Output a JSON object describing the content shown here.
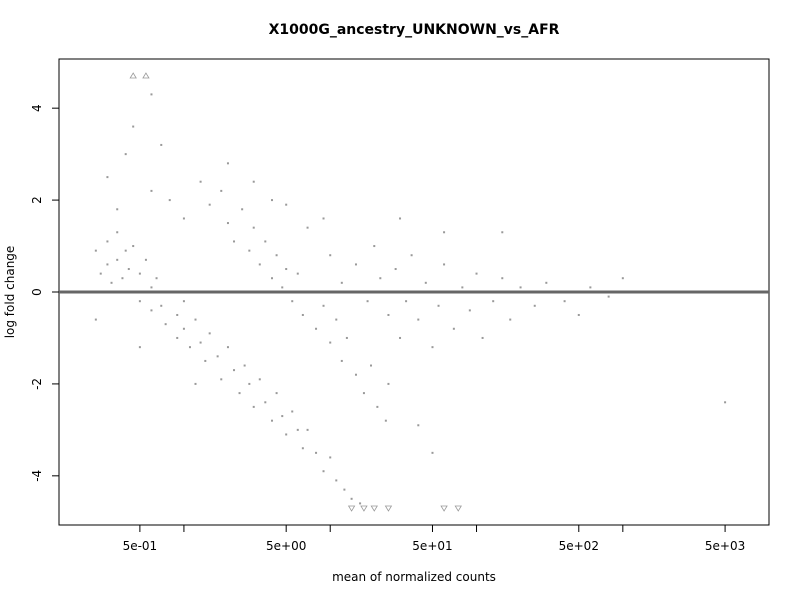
{
  "chart_data": {
    "type": "scatter",
    "title": "X1000G_ancestry_UNKNOWN_vs_AFR",
    "x_label": "mean of normalized counts",
    "y_label": "log fold change",
    "log_x": true,
    "xlim": [
      0.14,
      9980
    ],
    "ylim": [
      -5.07,
      5.07
    ],
    "xticks": [
      {
        "value": 0.5,
        "label": "5e-01"
      },
      {
        "value": 5,
        "label": "5e+00"
      },
      {
        "value": 50,
        "label": "5e+01"
      },
      {
        "value": 500,
        "label": "5e+02"
      },
      {
        "value": 5000,
        "label": "5e+03"
      }
    ],
    "xminor_ticks": [
      1,
      10,
      100,
      1000
    ],
    "yticks": [
      -4,
      -2,
      0,
      2,
      4
    ],
    "reference_line": {
      "y": 0,
      "color": "#666666"
    },
    "series": [
      {
        "color": "#999999",
        "marker": "dot",
        "x": [
          0.25,
          0.27,
          0.3,
          0.3,
          0.32,
          0.35,
          0.35,
          0.38,
          0.4,
          0.42,
          0.45,
          0.45,
          0.5,
          0.5,
          0.55,
          0.6,
          0.6,
          0.65,
          0.7,
          0.75,
          0.8,
          0.9,
          0.9,
          1.0,
          1.0,
          1.1,
          1.2,
          1.3,
          1.4,
          1.5,
          1.7,
          1.8,
          2.0,
          2.2,
          2.4,
          2.6,
          2.8,
          3.0,
          3.3,
          3.6,
          4.0,
          4.3,
          4.7,
          5.0,
          5.5,
          6.0,
          6.5,
          7.0,
          8.0,
          9.0,
          10,
          11,
          12.5,
          14,
          16,
          0.3,
          0.4,
          0.45,
          0.6,
          0.7,
          0.8,
          1.0,
          0.35,
          0.25,
          0.5,
          1.2,
          0.6,
          1.3,
          1.5,
          1.8,
          2.0,
          2.2,
          2.5,
          2.8,
          3.0,
          3.3,
          3.6,
          4.0,
          4.3,
          4.7,
          5.0,
          5.5,
          6.0,
          6.5,
          7.0,
          8.0,
          9.0,
          10,
          11,
          12,
          13,
          15,
          17,
          19,
          21,
          24,
          3.0,
          5.0,
          7.0,
          9.0,
          2.0,
          4.0,
          10,
          12,
          15,
          18,
          20,
          22,
          25,
          28,
          30,
          33,
          36,
          40,
          45,
          50,
          55,
          60,
          70,
          80,
          90,
          100,
          110,
          130,
          150,
          170,
          200,
          250,
          300,
          400,
          500,
          600,
          800,
          1000,
          30,
          60,
          150,
          25,
          40,
          50,
          5000
        ],
        "values": [
          0.9,
          0.4,
          1.1,
          0.6,
          0.2,
          1.3,
          0.7,
          0.3,
          0.9,
          0.5,
          0.0,
          1.0,
          0.4,
          -0.2,
          0.7,
          0.1,
          -0.4,
          0.3,
          -0.3,
          -0.7,
          0.0,
          -0.5,
          -1.0,
          -0.2,
          -0.8,
          -1.2,
          -0.6,
          -1.1,
          -1.5,
          -0.9,
          -1.4,
          -1.9,
          -1.2,
          -1.7,
          -2.2,
          -1.6,
          -2.0,
          -2.5,
          -1.9,
          -2.4,
          -2.8,
          -2.2,
          -2.7,
          -3.1,
          -2.6,
          -3.0,
          -3.4,
          -3.0,
          -3.5,
          -3.9,
          -3.6,
          -4.1,
          -4.3,
          -4.5,
          -4.6,
          2.5,
          3.0,
          3.6,
          2.2,
          3.2,
          2.0,
          1.6,
          1.8,
          -0.6,
          -1.2,
          -2.0,
          4.3,
          2.4,
          1.9,
          2.2,
          1.5,
          1.1,
          1.8,
          0.9,
          1.4,
          0.6,
          1.1,
          0.3,
          0.8,
          0.1,
          0.5,
          -0.2,
          0.4,
          -0.5,
          0.0,
          -0.8,
          -0.3,
          -1.1,
          -0.6,
          -1.5,
          -1.0,
          -1.8,
          -2.2,
          -1.6,
          -2.5,
          -2.8,
          2.4,
          1.9,
          1.4,
          1.6,
          2.8,
          2.0,
          0.8,
          0.2,
          0.6,
          -0.2,
          1.0,
          0.3,
          -0.5,
          0.5,
          -1.0,
          -0.2,
          0.8,
          -0.6,
          0.2,
          -1.2,
          -0.3,
          0.6,
          -0.8,
          0.1,
          -0.4,
          0.4,
          -1.0,
          -0.2,
          0.3,
          -0.6,
          0.1,
          -0.3,
          0.2,
          -0.2,
          -0.5,
          0.1,
          -0.1,
          0.3,
          1.6,
          1.3,
          1.3,
          -2.0,
          -2.9,
          -3.5,
          -2.4
        ]
      },
      {
        "color": "#999999",
        "marker": "triangle",
        "x": [
          0.45,
          0.55,
          14,
          17,
          20,
          25,
          60,
          75
        ],
        "values": [
          4.7,
          4.7,
          -4.7,
          -4.7,
          -4.7,
          -4.7,
          -4.7,
          -4.7
        ]
      }
    ]
  }
}
